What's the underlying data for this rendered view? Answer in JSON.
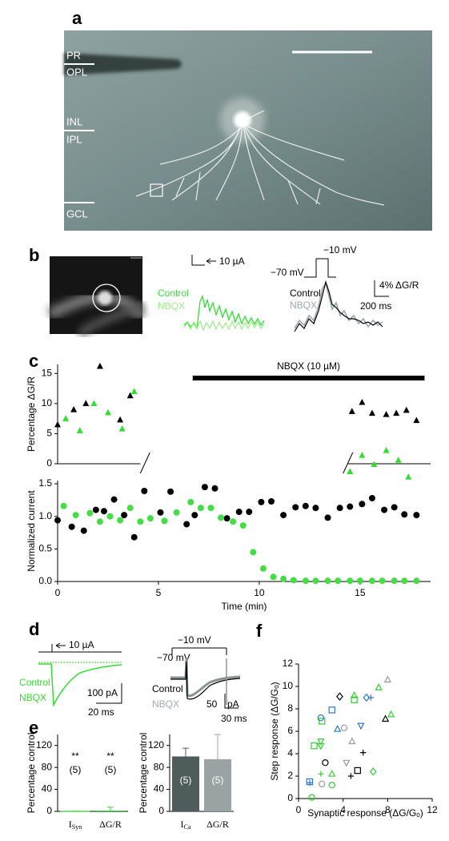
{
  "panels": {
    "a": {
      "label": "a",
      "layers": [
        "PR",
        "OPL",
        "INL",
        "IPL",
        "GCL"
      ]
    },
    "b": {
      "label": "b",
      "current_scale": "10 µA",
      "current_legend": [
        "Control",
        "NBQX"
      ],
      "voltage_step": [
        "−10 mV",
        "−70 mV"
      ],
      "fluor_legend": [
        "Control",
        "NBQX"
      ],
      "fluor_scale": [
        "4% ΔG/R",
        "200 ms"
      ]
    },
    "c": {
      "label": "c"
    },
    "d": {
      "label": "d",
      "current_scale": "10 µA",
      "legend": [
        "Control",
        "NBQX"
      ],
      "left_scale": [
        "100 pA",
        "20 ms"
      ],
      "voltage_step": [
        "−10 mV",
        "−70 mV"
      ],
      "right_legend": [
        "Control",
        "NBQX"
      ],
      "right_scale": [
        "50",
        "pA",
        "30 ms"
      ]
    },
    "e": {
      "label": "e"
    },
    "f": {
      "label": "f"
    }
  },
  "chart_data": [
    {
      "type": "scatter",
      "ylabel": "Percentage ΔG/R",
      "xlim": [
        0,
        18.5
      ],
      "ylim": [
        0,
        16.5
      ],
      "yticks": [
        0,
        5,
        10,
        15
      ],
      "axis_segments": [
        [
          0,
          4.1
        ],
        [
          14.4,
          18.5
        ]
      ],
      "open_markers": false,
      "annotation": {
        "text": "NBQX (10 µM)",
        "span": [
          6.7,
          18.2
        ]
      },
      "series": [
        {
          "color": "#000000",
          "marker": "triangle",
          "x": [
            0,
            0.8,
            1.4,
            2.1,
            3.1,
            3.6,
            14.6,
            15.1,
            15.6,
            16.3,
            16.8,
            17.3,
            17.8
          ],
          "values": [
            6.5,
            9,
            10,
            16.2,
            7.3,
            11.3,
            8.7,
            10.2,
            8.4,
            8.2,
            8.4,
            8.9,
            7.2
          ]
        },
        {
          "color": "#33dd33",
          "marker": "triangle",
          "x": [
            0.4,
            1.1,
            1.8,
            2.5,
            3.2,
            3.8,
            14.5,
            15.1,
            15.7,
            16.3,
            16.9,
            17.4
          ],
          "values": [
            7.5,
            5.5,
            10,
            8.5,
            5.8,
            12,
            -1.3,
            1.4,
            -0.1,
            2.2,
            0.6,
            -2.2
          ]
        }
      ]
    },
    {
      "type": "scatter",
      "xlabel": "Time (min)",
      "ylabel": "Normalized current",
      "xlim": [
        0,
        18.5
      ],
      "ylim": [
        0,
        1.55
      ],
      "xticks": [
        0,
        5,
        10,
        15
      ],
      "yticks": [
        {
          "value": 0,
          "label": "0.0"
        },
        0.5,
        {
          "value": 1,
          "label": "1.0"
        },
        1.5
      ],
      "open_markers": false,
      "series": [
        {
          "color": "#000000",
          "marker": "circle",
          "x": [
            0,
            0.7,
            1.3,
            1.9,
            2.3,
            2.8,
            3.3,
            3.8,
            4.3,
            5.1,
            5.6,
            6.4,
            6.8,
            7.3,
            7.8,
            8.4,
            9.0,
            9.5,
            10.1,
            10.6,
            11.2,
            11.8,
            12.3,
            12.8,
            13.4,
            14.0,
            14.5,
            15.1,
            15.6,
            16.2,
            16.7,
            17.2,
            17.8
          ],
          "values": [
            0.94,
            0.84,
            0.78,
            1.1,
            1.08,
            1.26,
            1.02,
            0.68,
            1.39,
            1.06,
            1.38,
            0.88,
            1.02,
            1.45,
            1.43,
            0.97,
            1.07,
            1.07,
            1.22,
            1.23,
            1.02,
            1.14,
            1.16,
            1.13,
            0.98,
            1.13,
            1.15,
            1.19,
            1.28,
            1.1,
            1.14,
            1.03,
            1.02
          ]
        },
        {
          "color": "#44dd44",
          "marker": "circle",
          "x": [
            0.3,
            0.9,
            1.6,
            2.1,
            2.6,
            3.1,
            3.6,
            4.1,
            4.6,
            5.3,
            5.9,
            6.6,
            7.1,
            7.6,
            8.1,
            8.7,
            9.2,
            9.7,
            10.2,
            10.7,
            11.2,
            11.7,
            12.3,
            12.8,
            13.4,
            13.9,
            14.5,
            15.0,
            15.6,
            16.1,
            16.7,
            17.2,
            17.8
          ],
          "values": [
            1.16,
            1.02,
            1.05,
            0.92,
            1.0,
            0.94,
            1.13,
            0.92,
            0.97,
            0.93,
            1.06,
            1.22,
            1.13,
            1.13,
            0.98,
            0.92,
            0.86,
            0.45,
            0.2,
            0.07,
            0.04,
            0.02,
            0.01,
            0.01,
            0.01,
            0.01,
            0.01,
            0.01,
            0.01,
            0.01,
            0.01,
            0.01,
            0.01
          ]
        }
      ]
    },
    {
      "type": "bar",
      "ylabel": "Percentage control",
      "ylim": [
        0,
        140
      ],
      "yticks": [
        0,
        40,
        80,
        120
      ],
      "categories": [
        "I",
        "ΔG/R"
      ],
      "category_subscripts": {
        "0": "Syn"
      },
      "values": [
        0.5,
        1.5
      ],
      "errors": [
        0,
        6
      ],
      "colors": [
        "#33dd33",
        "#33dd33"
      ],
      "annotations": [
        "**",
        "**"
      ],
      "n_labels": [
        "(5)",
        "(5)"
      ]
    },
    {
      "type": "bar",
      "ylabel": "Percentage control",
      "ylim": [
        0,
        140
      ],
      "yticks": [
        0,
        40,
        80,
        120
      ],
      "categories": [
        "I",
        "ΔG/R"
      ],
      "category_subscripts": {
        "0": "Ca"
      },
      "values": [
        100,
        95
      ],
      "errors": [
        15,
        45
      ],
      "colors": [
        "#4f5c5c",
        "#9aa3a3"
      ],
      "n_labels": [
        "(5)",
        "(5)"
      ]
    },
    {
      "type": "scatter",
      "xlabel": "Synaptic response (ΔG/Gₒ)",
      "ylabel": "Step response (ΔG/Gₒ)",
      "xlim": [
        0,
        12
      ],
      "ylim": [
        0,
        12
      ],
      "xticks": [
        0,
        4,
        8,
        12
      ],
      "yticks": [
        0,
        2,
        4,
        6,
        8,
        10,
        12
      ],
      "open_markers": true,
      "series": [
        {
          "color": "#000000",
          "marker": "diamond",
          "x": [
            3.7
          ],
          "values": [
            9.1
          ]
        },
        {
          "color": "#000000",
          "marker": "triangle",
          "x": [
            7.8
          ],
          "values": [
            7.1
          ]
        },
        {
          "color": "#000000",
          "marker": "circle",
          "x": [
            2.4
          ],
          "values": [
            3.2
          ]
        },
        {
          "color": "#000000",
          "marker": "cross",
          "x": [
            5.8,
            4.7
          ],
          "values": [
            4.1,
            2.0
          ]
        },
        {
          "color": "#000000",
          "marker": "square",
          "x": [
            5.3
          ],
          "values": [
            2.5
          ]
        },
        {
          "color": "#33cc33",
          "marker": "triangle",
          "x": [
            5.0,
            7.2,
            8.3,
            3.0
          ],
          "values": [
            9.2,
            9.9,
            7.5,
            2.2
          ]
        },
        {
          "color": "#33cc33",
          "marker": "square",
          "x": [
            5.0,
            2.1,
            1.4
          ],
          "values": [
            8.8,
            6.9,
            4.7
          ]
        },
        {
          "color": "#33cc33",
          "marker": "down-triangle",
          "x": [
            2.0,
            2.0
          ],
          "values": [
            5.1,
            4.7
          ]
        },
        {
          "color": "#33cc33",
          "marker": "cross",
          "x": [
            2.0
          ],
          "values": [
            2.2
          ]
        },
        {
          "color": "#33cc33",
          "marker": "circle",
          "x": [
            3.0,
            1.2
          ],
          "values": [
            1.2,
            0.1
          ]
        },
        {
          "color": "#33cc33",
          "marker": "diamond",
          "x": [
            6.7
          ],
          "values": [
            2.4
          ]
        },
        {
          "color": "#2a78d6",
          "marker": "diamond",
          "x": [
            6.1
          ],
          "values": [
            9.0
          ]
        },
        {
          "color": "#2a78d6",
          "marker": "cross",
          "x": [
            6.5,
            1.0
          ],
          "values": [
            9.0,
            1.4
          ]
        },
        {
          "color": "#2a78d6",
          "marker": "square",
          "x": [
            3.0,
            1.0
          ],
          "values": [
            7.9,
            1.5
          ]
        },
        {
          "color": "#2a78d6",
          "marker": "circle",
          "x": [
            2.0
          ],
          "values": [
            7.2
          ]
        },
        {
          "color": "#2a78d6",
          "marker": "triangle",
          "x": [
            3.5
          ],
          "values": [
            6.2
          ]
        },
        {
          "color": "#2a78d6",
          "marker": "down-triangle",
          "x": [
            5.6
          ],
          "values": [
            6.5
          ]
        },
        {
          "color": "#9a9a9a",
          "marker": "triangle",
          "x": [
            8.0,
            4.8
          ],
          "values": [
            10.6,
            5.1
          ]
        },
        {
          "color": "#9a9a9a",
          "marker": "circle",
          "x": [
            4.1,
            2.1
          ],
          "values": [
            6.3,
            1.3
          ]
        },
        {
          "color": "#9a9a9a",
          "marker": "down-triangle",
          "x": [
            4.3
          ],
          "values": [
            3.2
          ]
        }
      ]
    }
  ]
}
